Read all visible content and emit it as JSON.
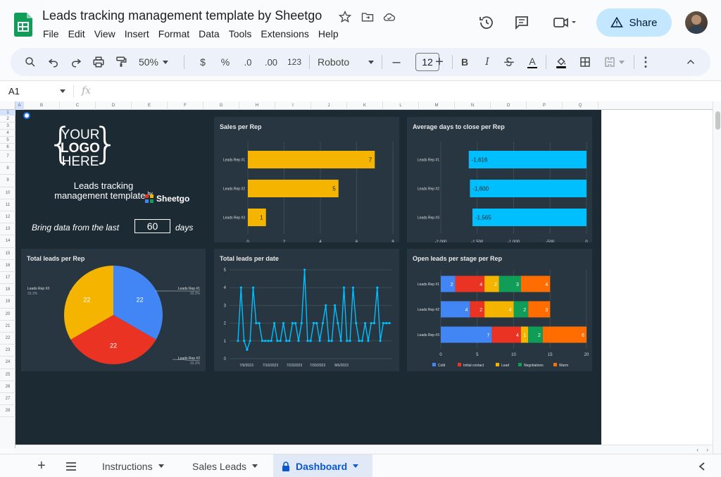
{
  "doc": {
    "title": "Leads tracking management template by Sheetgo"
  },
  "menu": [
    "File",
    "Edit",
    "View",
    "Insert",
    "Format",
    "Data",
    "Tools",
    "Extensions",
    "Help"
  ],
  "share": {
    "label": "Share"
  },
  "toolbar": {
    "zoom": "50%",
    "currency": "$",
    "percent": "%",
    "dec_minus": ".0",
    "dec_plus": ".00",
    "number_format": "123",
    "font": "Roboto",
    "font_size": "12",
    "bold": "B",
    "italic": "I",
    "text_color": "A"
  },
  "formula": {
    "name_box": "A1",
    "fx": "fx"
  },
  "columns": [
    "A",
    "B",
    "C",
    "D",
    "E",
    "F",
    "G",
    "H",
    "I",
    "J",
    "K",
    "L",
    "M",
    "N",
    "O",
    "P",
    "Q"
  ],
  "rows": [
    "1",
    "2",
    "3",
    "4",
    "5",
    "6",
    "7",
    "8",
    "9",
    "10",
    "11",
    "12",
    "13",
    "14",
    "15",
    "16",
    "17",
    "18",
    "19",
    "20",
    "21",
    "22",
    "23",
    "24",
    "25",
    "26",
    "27",
    "28"
  ],
  "dashboard": {
    "logo_lines": [
      "YOUR",
      "LOGO",
      "HERE"
    ],
    "template_title_1": "Leads tracking",
    "template_title_2": "management template",
    "by": "by",
    "brand": "Sheetgo",
    "bring_data_label": "Bring data from the last",
    "days_value": "60",
    "days_label": "days"
  },
  "tabs": {
    "instructions": "Instructions",
    "sales_leads": "Sales Leads",
    "dashboard": "Dashboard"
  },
  "colors": {
    "dash_bg": "#1c2a34",
    "panel_bg": "#273640",
    "yellow": "#f4b400",
    "cyan": "#00bfff",
    "blue": "#4285f4",
    "red": "#ea3323",
    "green": "#0f9d58",
    "orange": "#ff6d00"
  },
  "chart_data": [
    {
      "type": "bar",
      "title": "Sales per Rep",
      "categories": [
        "Leads Rep #1",
        "Leads Rep #2",
        "Leads Rep #3"
      ],
      "values": [
        7,
        5,
        1
      ],
      "xticks": [
        0,
        2,
        4,
        6,
        8
      ],
      "xlim": [
        0,
        8
      ]
    },
    {
      "type": "bar",
      "title": "Average days to close per Rep",
      "categories": [
        "Leads Rep #1",
        "Leads Rep #2",
        "Leads Rep #3"
      ],
      "values": [
        -1616,
        -1600,
        -1565
      ],
      "value_labels": [
        "-1,616",
        "-1,600",
        "-1,565"
      ],
      "xticks": [
        -2000,
        -1500,
        -1000,
        -500,
        0
      ],
      "xtick_labels": [
        "-2,000",
        "-1,500",
        "-1,000",
        "-500",
        "0"
      ],
      "xlim": [
        -2000,
        0
      ]
    },
    {
      "type": "pie",
      "title": "Total leads per Rep",
      "slices": [
        {
          "label": "Leads Rep #1",
          "value": 22,
          "percent": "33.3%",
          "color": "#4285f4"
        },
        {
          "label": "Leads Rep #2",
          "value": 22,
          "percent": "33.3%",
          "color": "#ea3323"
        },
        {
          "label": "Leads Rep #3",
          "value": 22,
          "percent": "33.3%",
          "color": "#f4b400"
        }
      ]
    },
    {
      "type": "line",
      "title": "Total leads per date",
      "x_tick_labels": [
        "7/9/2023",
        "7/16/2023",
        "7/23/2023",
        "7/30/2023",
        "8/6/2023"
      ],
      "ylim": [
        0,
        5
      ],
      "yticks": [
        0,
        1,
        2,
        3,
        4,
        5
      ],
      "values": [
        1,
        4,
        1,
        0.5,
        1,
        4,
        2,
        2,
        1,
        1,
        1,
        1,
        2,
        1,
        1,
        2,
        1,
        1,
        2,
        2,
        1,
        2,
        5,
        1,
        1,
        2,
        2,
        1,
        2,
        3,
        1,
        1,
        3,
        2,
        1,
        4,
        1,
        1,
        4,
        2,
        1,
        1,
        2,
        1,
        2,
        2,
        4,
        1,
        2,
        2,
        2
      ]
    },
    {
      "type": "bar",
      "stacked": true,
      "title": "Open leads per stage per Rep",
      "categories": [
        "Leads Rep #1",
        "Leads Rep #2",
        "Leads Rep #3"
      ],
      "series": [
        {
          "name": "Cold",
          "color": "#4285f4",
          "values": [
            2,
            4,
            7
          ]
        },
        {
          "name": "Initial contact",
          "color": "#ea3323",
          "values": [
            4,
            2,
            4
          ]
        },
        {
          "name": "Lead",
          "color": "#f4b400",
          "values": [
            2,
            4,
            1
          ]
        },
        {
          "name": "Negotiations",
          "color": "#0f9d58",
          "values": [
            3,
            2,
            2
          ]
        },
        {
          "name": "Warm",
          "color": "#ff6d00",
          "values": [
            4,
            3,
            6
          ]
        }
      ],
      "xticks": [
        0,
        5,
        10,
        15,
        20
      ],
      "xlim": [
        0,
        20
      ]
    }
  ]
}
